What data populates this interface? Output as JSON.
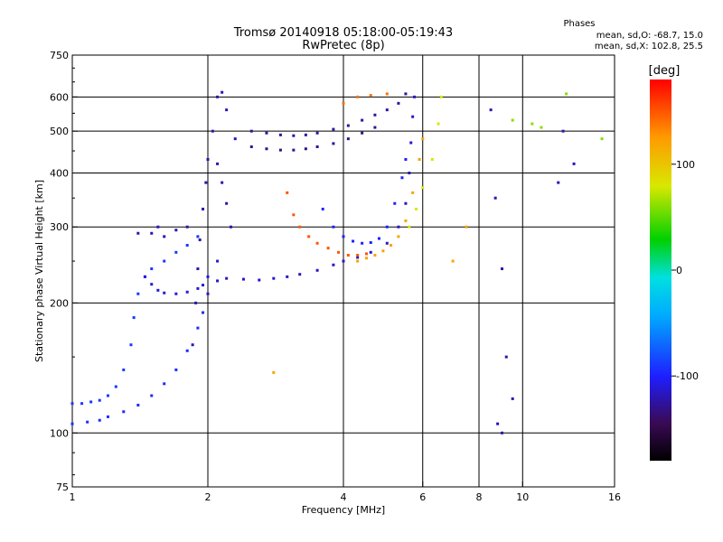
{
  "chart_data": {
    "type": "scatter",
    "title": "Tromsø 20140918 05:18:00-05:19:43",
    "subtitle": "RwPretec (8p)",
    "phases_block": {
      "title": "Phases",
      "line_o": "mean, sd,O: -68.7, 15.0",
      "line_x": "mean, sd,X: 102.8, 25.5"
    },
    "xlabel": "Frequency [MHz]",
    "ylabel": "Stationary phase Virtual Height [km]",
    "xscale": "log",
    "yscale": "log",
    "xlim": [
      1,
      16
    ],
    "ylim": [
      75,
      750
    ],
    "xticks": [
      1,
      2,
      4,
      6,
      8,
      10,
      16
    ],
    "xtick_labels": [
      "1",
      "2",
      "4",
      "6",
      "8",
      "10",
      "16"
    ],
    "xgrid": [
      2,
      4,
      6,
      8,
      10
    ],
    "yticks": [
      75,
      100,
      200,
      300,
      400,
      500,
      600,
      750
    ],
    "ytick_labels": [
      "75",
      "100",
      "200",
      "300",
      "400",
      "500",
      "600",
      "750"
    ],
    "ygrid": [
      100,
      200,
      300,
      400,
      500,
      600
    ],
    "grid": true,
    "colorbar": {
      "label": "[deg]",
      "range": [
        -180,
        180
      ],
      "ticks": [
        100,
        0,
        -100
      ],
      "tick_labels": [
        "100",
        "0",
        "-100"
      ]
    },
    "series": [
      {
        "phase": -90,
        "points": [
          [
            1.0,
            117
          ],
          [
            1.05,
            117
          ],
          [
            1.1,
            118
          ],
          [
            1.15,
            119
          ],
          [
            1.2,
            122
          ],
          [
            1.25,
            128
          ],
          [
            1.3,
            140
          ],
          [
            1.35,
            160
          ],
          [
            1.37,
            185
          ],
          [
            1.4,
            210
          ],
          [
            1.45,
            230
          ],
          [
            1.5,
            240
          ],
          [
            1.6,
            250
          ],
          [
            1.7,
            262
          ],
          [
            1.8,
            272
          ],
          [
            1.9,
            285
          ]
        ]
      },
      {
        "phase": -95,
        "points": [
          [
            1.0,
            105
          ],
          [
            1.08,
            106
          ],
          [
            1.15,
            107
          ],
          [
            1.2,
            109
          ],
          [
            1.3,
            112
          ],
          [
            1.4,
            116
          ],
          [
            1.5,
            122
          ],
          [
            1.6,
            130
          ],
          [
            1.7,
            140
          ],
          [
            1.8,
            155
          ],
          [
            1.9,
            175
          ],
          [
            1.95,
            190
          ]
        ]
      },
      {
        "phase": -110,
        "points": [
          [
            1.45,
            230
          ],
          [
            1.5,
            221
          ],
          [
            1.55,
            214
          ],
          [
            1.6,
            211
          ],
          [
            1.7,
            210
          ],
          [
            1.8,
            212
          ],
          [
            1.9,
            216
          ],
          [
            1.95,
            220
          ],
          [
            2.0,
            230
          ],
          [
            2.1,
            250
          ]
        ]
      },
      {
        "phase": -120,
        "points": [
          [
            1.85,
            160
          ],
          [
            1.88,
            200
          ],
          [
            1.9,
            240
          ],
          [
            1.92,
            280
          ],
          [
            1.95,
            330
          ],
          [
            1.98,
            380
          ],
          [
            2.0,
            430
          ],
          [
            2.05,
            500
          ],
          [
            2.1,
            600
          ],
          [
            2.15,
            615
          ],
          [
            2.2,
            560
          ],
          [
            2.3,
            480
          ]
        ]
      },
      {
        "phase": -115,
        "points": [
          [
            2.0,
            210
          ],
          [
            2.1,
            225
          ],
          [
            2.2,
            228
          ],
          [
            2.4,
            227
          ],
          [
            2.6,
            226
          ],
          [
            2.8,
            228
          ],
          [
            3.0,
            230
          ],
          [
            3.2,
            233
          ],
          [
            3.5,
            238
          ],
          [
            3.8,
            245
          ],
          [
            4.0,
            250
          ],
          [
            4.3,
            255
          ],
          [
            4.6,
            262
          ],
          [
            5.0,
            275
          ],
          [
            5.3,
            300
          ],
          [
            5.5,
            340
          ],
          [
            5.6,
            400
          ],
          [
            5.65,
            470
          ],
          [
            5.7,
            540
          ],
          [
            5.75,
            600
          ]
        ]
      },
      {
        "phase": -125,
        "points": [
          [
            2.5,
            500
          ],
          [
            2.7,
            495
          ],
          [
            2.9,
            490
          ],
          [
            3.1,
            488
          ],
          [
            3.3,
            490
          ],
          [
            3.5,
            495
          ],
          [
            3.8,
            505
          ],
          [
            4.1,
            515
          ],
          [
            4.4,
            530
          ],
          [
            4.7,
            545
          ],
          [
            5.0,
            560
          ],
          [
            5.3,
            580
          ],
          [
            5.5,
            610
          ]
        ]
      },
      {
        "phase": -130,
        "points": [
          [
            2.5,
            460
          ],
          [
            2.7,
            455
          ],
          [
            2.9,
            452
          ],
          [
            3.1,
            452
          ],
          [
            3.3,
            455
          ],
          [
            3.5,
            460
          ],
          [
            3.8,
            468
          ],
          [
            4.1,
            480
          ],
          [
            4.4,
            495
          ],
          [
            4.7,
            510
          ]
        ]
      },
      {
        "phase": -100,
        "points": [
          [
            3.6,
            330
          ],
          [
            3.8,
            300
          ],
          [
            4.0,
            285
          ],
          [
            4.2,
            278
          ],
          [
            4.4,
            275
          ],
          [
            4.6,
            276
          ],
          [
            4.8,
            282
          ],
          [
            5.0,
            300
          ],
          [
            5.2,
            340
          ],
          [
            5.4,
            390
          ],
          [
            5.5,
            430
          ]
        ]
      },
      {
        "phase": 150,
        "points": [
          [
            3.0,
            360
          ],
          [
            3.1,
            320
          ],
          [
            3.2,
            300
          ],
          [
            3.35,
            285
          ],
          [
            3.5,
            275
          ],
          [
            3.7,
            268
          ],
          [
            3.9,
            262
          ],
          [
            4.1,
            258
          ],
          [
            4.3,
            258
          ],
          [
            4.5,
            260
          ]
        ]
      },
      {
        "phase": 120,
        "points": [
          [
            4.3,
            250
          ],
          [
            4.5,
            254
          ],
          [
            4.7,
            258
          ],
          [
            4.9,
            264
          ],
          [
            5.1,
            272
          ],
          [
            5.3,
            285
          ],
          [
            5.5,
            310
          ],
          [
            5.7,
            360
          ],
          [
            5.9,
            430
          ],
          [
            6.0,
            480
          ]
        ]
      },
      {
        "phase": 80,
        "points": [
          [
            5.6,
            300
          ],
          [
            5.8,
            330
          ],
          [
            6.0,
            370
          ],
          [
            6.3,
            430
          ],
          [
            6.5,
            520
          ],
          [
            6.6,
            600
          ]
        ]
      },
      {
        "phase": 140,
        "points": [
          [
            4.0,
            580
          ],
          [
            4.3,
            600
          ],
          [
            4.6,
            605
          ],
          [
            5.0,
            610
          ]
        ]
      },
      {
        "phase": -120,
        "points": [
          [
            8.5,
            560
          ],
          [
            8.7,
            350
          ],
          [
            9.0,
            240
          ],
          [
            9.2,
            150
          ],
          [
            9.5,
            120
          ],
          [
            12.0,
            380
          ],
          [
            12.3,
            500
          ],
          [
            13.0,
            420
          ],
          [
            8.8,
            105
          ],
          [
            9.0,
            100
          ]
        ]
      },
      {
        "phase": -120,
        "points": [
          [
            1.4,
            290
          ],
          [
            1.5,
            290
          ],
          [
            1.55,
            300
          ],
          [
            1.6,
            285
          ],
          [
            1.7,
            295
          ],
          [
            1.8,
            300
          ],
          [
            2.1,
            420
          ],
          [
            2.15,
            380
          ],
          [
            2.2,
            340
          ],
          [
            2.25,
            300
          ]
        ]
      },
      {
        "phase": 60,
        "points": [
          [
            10.5,
            520
          ],
          [
            11.0,
            510
          ],
          [
            9.5,
            530
          ],
          [
            12.5,
            610
          ],
          [
            15.0,
            480
          ]
        ]
      },
      {
        "phase": 120,
        "points": [
          [
            2.8,
            138
          ],
          [
            7.5,
            300
          ],
          [
            7.0,
            250
          ]
        ]
      }
    ]
  }
}
